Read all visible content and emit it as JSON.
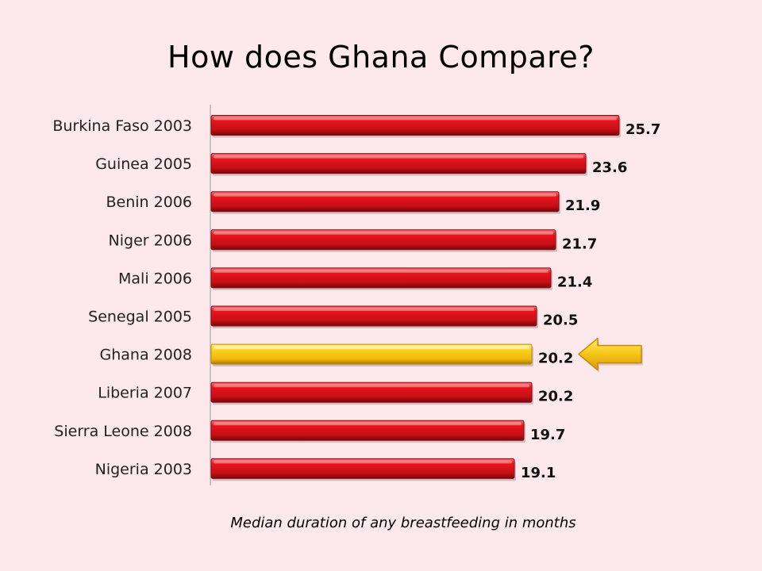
{
  "title": "How does Ghana Compare?",
  "caption": "Median duration of any breastfeeding in months",
  "colors": {
    "background": "#fde8ec",
    "bar": "#d8121c",
    "bar_dark": "#8e0a10",
    "highlight_bar": "#f7c61a",
    "highlight_dark": "#c08a06",
    "arrow": "#f7c61a"
  },
  "chart_data": {
    "type": "bar",
    "orientation": "horizontal",
    "categories": [
      "Burkina Faso 2003",
      "Guinea 2005",
      "Benin 2006",
      "Niger 2006",
      "Mali 2006",
      "Senegal 2005",
      "Ghana 2008",
      "Liberia 2007",
      "Sierra Leone 2008",
      "Nigeria 2003"
    ],
    "values": [
      25.7,
      23.6,
      21.9,
      21.7,
      21.4,
      20.5,
      20.2,
      20.2,
      19.7,
      19.1
    ],
    "value_labels": [
      "25.7",
      "23.6",
      "21.9",
      "21.7",
      "21.4",
      "20.5",
      "20.2",
      "20.2",
      "19.7",
      "19.1"
    ],
    "highlight_category": "Ghana 2008",
    "highlight_marker": "left-pointing-arrow",
    "grid": false,
    "xlim": [
      0,
      25.7
    ]
  }
}
